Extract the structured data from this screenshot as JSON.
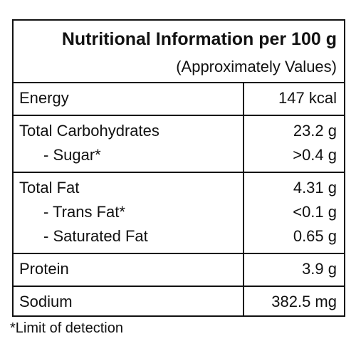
{
  "header": {
    "title": "Nutritional Information per 100 g",
    "subtitle": "(Approximately Values)"
  },
  "table": {
    "rows": [
      [
        [
          "Energy",
          "147 kcal"
        ]
      ],
      [
        [
          "Total Carbohydrates",
          "23.2 g"
        ],
        [
          "- Sugar*",
          ">0.4 g"
        ]
      ],
      [
        [
          "Total Fat",
          "4.31 g"
        ],
        [
          "- Trans Fat*",
          "<0.1 g"
        ],
        [
          "- Saturated Fat",
          "0.65 g"
        ]
      ],
      [
        [
          "Protein",
          "3.9 g"
        ]
      ],
      [
        [
          "Sodium",
          "382.5 mg"
        ]
      ]
    ]
  },
  "footnote": "*Limit of detection"
}
